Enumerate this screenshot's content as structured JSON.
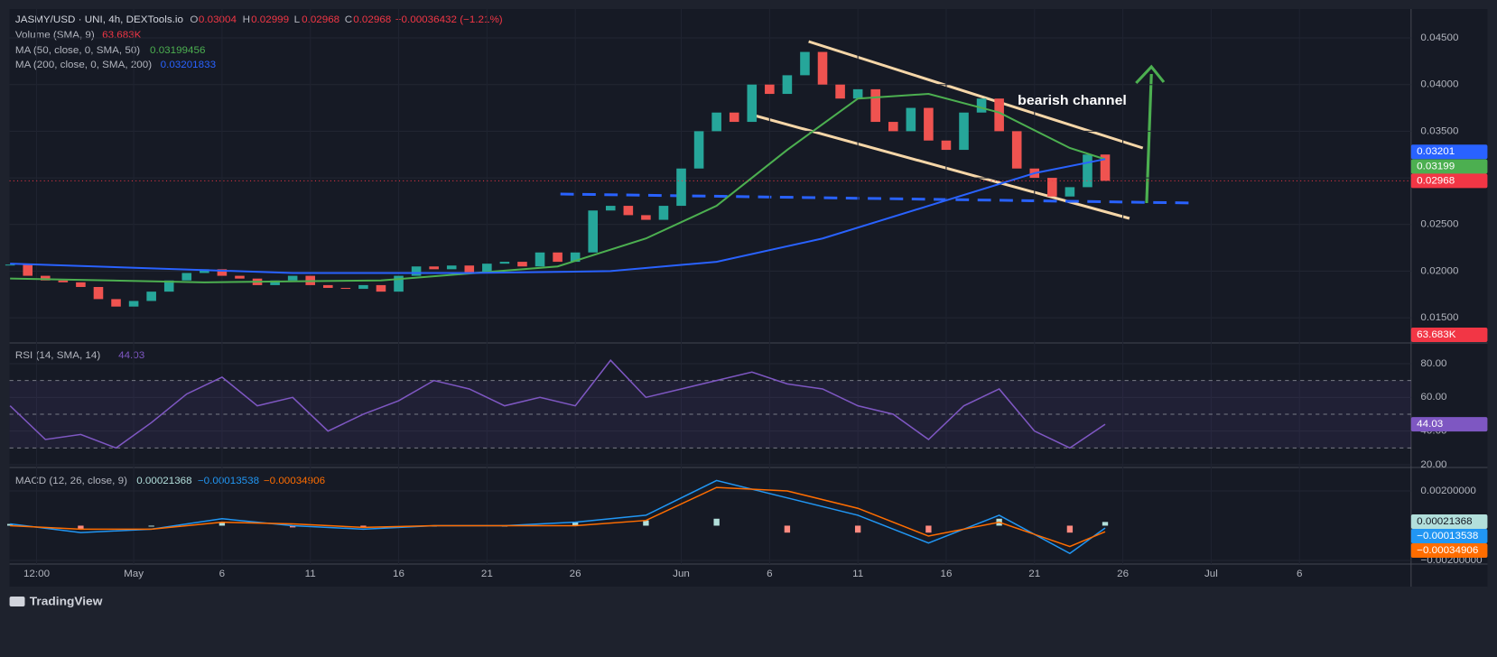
{
  "header": {
    "pair": "JASMY/USD · UNI, 4h, DEXTools.io",
    "o_label": "O",
    "open": 0.03004,
    "h_label": "H",
    "high": 0.02999,
    "l_label": "L",
    "low": 0.02968,
    "c_label": "C",
    "close": 0.02968,
    "change": "−0.00036432 (−1.21%)"
  },
  "legend": {
    "volume": {
      "name": "Volume (SMA, 9)",
      "value": "63.683K"
    },
    "ma50": {
      "name": "MA (50, close, 0, SMA, 50)",
      "value": 0.03199456
    },
    "ma200": {
      "name": "MA (200, close, 0, SMA, 200)",
      "value": 0.03201833
    },
    "rsi": {
      "name": "RSI (14, SMA, 14)",
      "value": 44.03
    },
    "macd": {
      "name": "MACD (12, 26, close, 9)",
      "hist": 0.00021368,
      "macd": "−0.00013538",
      "signal": "−0.00034906"
    }
  },
  "annotation": "bearish channel",
  "brand": "TradingView",
  "chart_data": {
    "type": "candlestick",
    "xlim": [
      -6.03,
      73.32
    ],
    "xticks": [
      {
        "value": -4.5,
        "label": "12:00"
      },
      {
        "value": 1,
        "label": "May"
      },
      {
        "value": 6,
        "label": "6"
      },
      {
        "value": 11,
        "label": "11"
      },
      {
        "value": 16,
        "label": "16"
      },
      {
        "value": 21,
        "label": "21"
      },
      {
        "value": 26,
        "label": "26"
      },
      {
        "value": 32,
        "label": "Jun"
      },
      {
        "value": 37,
        "label": "6"
      },
      {
        "value": 42,
        "label": "11"
      },
      {
        "value": 47,
        "label": "16"
      },
      {
        "value": 52,
        "label": "21"
      },
      {
        "value": 57,
        "label": "26"
      },
      {
        "value": 62,
        "label": "Jul"
      },
      {
        "value": 67,
        "label": "6"
      }
    ],
    "ylim": [
      0.0123,
      0.0481
    ],
    "yticks": [
      {
        "value": 0.045,
        "label": "0.04500"
      },
      {
        "value": 0.04,
        "label": "0.04000"
      },
      {
        "value": 0.035,
        "label": "0.03500"
      },
      {
        "value": 0.03,
        "label": "0.03000"
      },
      {
        "value": 0.025,
        "label": "0.02500"
      },
      {
        "value": 0.02,
        "label": "0.02000"
      },
      {
        "value": 0.015,
        "label": "0.01500"
      }
    ],
    "x": [
      -6,
      -5,
      -4,
      -3,
      -2,
      -1,
      0,
      1,
      2,
      3,
      4,
      5,
      6,
      7,
      8,
      9,
      10,
      11,
      12,
      13,
      14,
      15,
      16,
      17,
      18,
      19,
      20,
      21,
      22,
      23,
      24,
      25,
      26,
      27,
      28,
      29,
      30,
      31,
      32,
      33,
      34,
      35,
      36,
      37,
      38,
      39,
      40,
      41,
      42,
      43,
      44,
      45,
      46,
      47,
      48,
      49,
      50,
      51,
      52,
      53,
      54,
      55,
      56
    ],
    "close": [
      0.0207,
      0.0195,
      0.019,
      0.0188,
      0.0183,
      0.017,
      0.0162,
      0.0168,
      0.0178,
      0.019,
      0.0198,
      0.0202,
      0.0195,
      0.0192,
      0.0185,
      0.019,
      0.0195,
      0.0185,
      0.0182,
      0.0181,
      0.0185,
      0.0178,
      0.0195,
      0.0205,
      0.0202,
      0.0206,
      0.0198,
      0.0208,
      0.021,
      0.0205,
      0.022,
      0.021,
      0.022,
      0.0265,
      0.027,
      0.026,
      0.0255,
      0.027,
      0.031,
      0.035,
      0.037,
      0.036,
      0.04,
      0.039,
      0.041,
      0.0435,
      0.04,
      0.0385,
      0.0395,
      0.036,
      0.035,
      0.0375,
      0.034,
      0.033,
      0.037,
      0.0385,
      0.035,
      0.031,
      0.03,
      0.028,
      0.029,
      0.0325,
      0.02968
    ],
    "ma50": {
      "color": "#4caf50",
      "x": [
        -6,
        5,
        15,
        25,
        30,
        34,
        38,
        42,
        46,
        50,
        54,
        56
      ],
      "values": [
        0.0192,
        0.0188,
        0.019,
        0.0205,
        0.0235,
        0.027,
        0.033,
        0.0385,
        0.039,
        0.037,
        0.0332,
        0.03199
      ]
    },
    "ma200": {
      "color": "#2962ff",
      "x": [
        -6,
        10,
        20,
        28,
        34,
        40,
        46,
        52,
        56
      ],
      "values": [
        0.0208,
        0.0198,
        0.0198,
        0.02,
        0.021,
        0.0235,
        0.027,
        0.0305,
        0.03201
      ]
    },
    "last_price": {
      "value": 0.02968,
      "color": "#f23645"
    },
    "rsi": {
      "color": "#7e57c2",
      "ylim": [
        18.4,
        92.3
      ],
      "yticks": [
        {
          "value": 80,
          "label": "80.00"
        },
        {
          "value": 60,
          "label": "60.00"
        },
        {
          "value": 40,
          "label": "40.00"
        },
        {
          "value": 20,
          "label": "20.00"
        }
      ],
      "levels": [
        70,
        50,
        30
      ],
      "x": [
        -6,
        -4,
        -2,
        0,
        2,
        4,
        6,
        8,
        10,
        12,
        14,
        16,
        18,
        20,
        22,
        24,
        26,
        28,
        30,
        32,
        34,
        36,
        38,
        40,
        42,
        44,
        46,
        48,
        50,
        52,
        54,
        56
      ],
      "values": [
        55,
        35,
        38,
        30,
        45,
        62,
        72,
        55,
        60,
        40,
        50,
        58,
        70,
        65,
        55,
        60,
        55,
        82,
        60,
        65,
        70,
        75,
        68,
        65,
        55,
        50,
        35,
        55,
        65,
        40,
        30,
        44.03
      ]
    },
    "macd": {
      "ylim": [
        -0.00221,
        0.00335
      ],
      "yticks": [
        {
          "value": 0.002,
          "label": "0.00200000"
        },
        {
          "value": -0.002,
          "label": "−0.00200000"
        }
      ],
      "x": [
        -6,
        -2,
        2,
        6,
        10,
        14,
        18,
        22,
        26,
        30,
        34,
        38,
        42,
        46,
        50,
        54,
        56
      ],
      "macd": [
        0.0001,
        -0.0004,
        -0.0002,
        0.0004,
        0,
        -0.0002,
        0,
        0,
        0.0002,
        0.0006,
        0.0026,
        0.0016,
        0.0006,
        -0.001,
        0.0006,
        -0.0016,
        -0.00013538
      ],
      "signal": [
        0,
        -0.0002,
        -0.0002,
        0.0002,
        0.0001,
        -0.0001,
        0,
        0,
        0,
        0.0003,
        0.0022,
        0.002,
        0.001,
        -0.0006,
        0.0002,
        -0.0012,
        -0.00034906
      ],
      "hist": [
        0.0001,
        -0.0002,
        0,
        0.0002,
        -0.0001,
        -0.0001,
        0,
        0,
        0.0002,
        0.0003,
        0.0004,
        -0.0004,
        -0.0004,
        -0.0004,
        0.0004,
        -0.0004,
        0.00021368
      ],
      "macd_color": "#2196f3",
      "signal_color": "#ff6d00"
    }
  }
}
